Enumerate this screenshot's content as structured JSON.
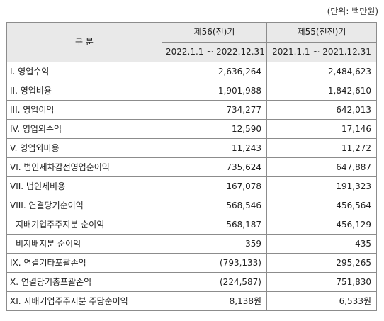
{
  "unit_label": "(단위: 백만원)",
  "header": {
    "category": "구    분",
    "col_current": "제56(전)기",
    "col_prior": "제55(전전)기",
    "period_current": "2022.1.1 ~ 2022.12.31",
    "period_prior": "2021.1.1 ~ 2021.12.31"
  },
  "rows": [
    {
      "label": "I. 영업수익",
      "current": "2,636,264",
      "prior": "2,484,623"
    },
    {
      "label": "II. 영업비용",
      "current": "1,901,988",
      "prior": "1,842,610"
    },
    {
      "label": "III. 영업이익",
      "current": "734,277",
      "prior": "642,013"
    },
    {
      "label": "IV. 영업외수익",
      "current": "12,590",
      "prior": "17,146"
    },
    {
      "label": "V. 영업외비용",
      "current": "11,243",
      "prior": "11,272"
    },
    {
      "label": "VI. 법인세차감전영업순이익",
      "current": "735,624",
      "prior": "647,887"
    },
    {
      "label": "VII. 법인세비용",
      "current": "167,078",
      "prior": "191,323"
    },
    {
      "label": "VIII. 연결당기순이익",
      "current": "568,546",
      "prior": "456,564"
    },
    {
      "label": "지배기업주주지분 순이익",
      "current": "568,187",
      "prior": "456,129"
    },
    {
      "label": "비지배지분 순이익",
      "current": "359",
      "prior": "435"
    },
    {
      "label": "IX. 연결기타포괄손익",
      "current": "(793,133)",
      "prior": "295,265"
    },
    {
      "label": "X. 연결당기총포괄손익",
      "current": "(224,587)",
      "prior": "751,830"
    },
    {
      "label": "XI. 지배기업주주지분 주당순이익",
      "current": "8,138원",
      "prior": "6,533원"
    }
  ]
}
